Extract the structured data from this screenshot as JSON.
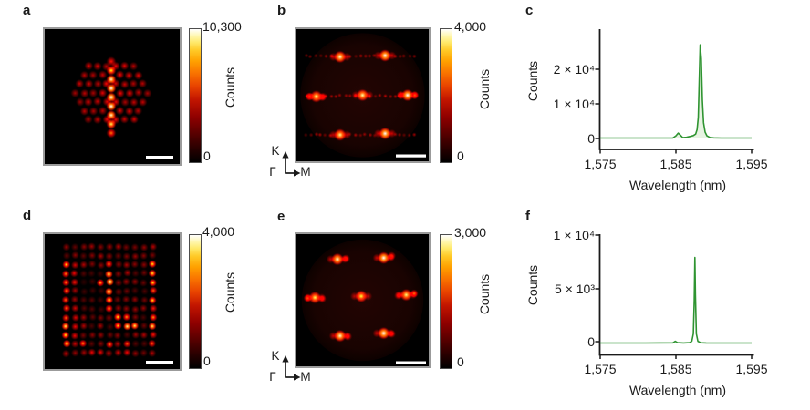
{
  "figure": {
    "background": "#ffffff"
  },
  "colors": {
    "line_green": "#2f9431",
    "fill_green": "#e7f3e2",
    "scalebar": "#ffffff",
    "axis": "#1a1a1a",
    "hot_colormap": [
      "#000000",
      "#560000",
      "#c21500",
      "#f97300",
      "#ffc926",
      "#ffffff"
    ]
  },
  "panels": {
    "a": {
      "label": "a",
      "colorbar": {
        "max": "10,300",
        "min": "0",
        "title": "Counts"
      },
      "scalebar": true
    },
    "b": {
      "label": "b",
      "colorbar": {
        "max": "4,000",
        "min": "0",
        "title": "Counts"
      },
      "scalebar": true,
      "axes_indicator": {
        "up": "K",
        "origin": "Γ",
        "right": "M"
      }
    },
    "c": {
      "label": "c",
      "ylabel": "Counts",
      "xlabel": "Wavelength (nm)",
      "yticks": [
        "2 × 10⁴",
        "1 × 10⁴",
        "0"
      ],
      "xticks": [
        "1,575",
        "1,585",
        "1,595"
      ]
    },
    "d": {
      "label": "d",
      "colorbar": {
        "max": "4,000",
        "min": "0",
        "title": "Counts"
      },
      "scalebar": true
    },
    "e": {
      "label": "e",
      "colorbar": {
        "max": "3,000",
        "min": "0",
        "title": "Counts"
      },
      "scalebar": true,
      "axes_indicator": {
        "up": "K",
        "origin": "Γ",
        "right": "M"
      }
    },
    "f": {
      "label": "f",
      "ylabel": "Counts",
      "xlabel": "Wavelength (nm)",
      "yticks": [
        "1 × 10⁴",
        "5 × 10³",
        "0"
      ],
      "xticks": [
        "1,575",
        "1,585",
        "1,595"
      ]
    }
  },
  "chart_data": [
    {
      "panel": "c",
      "type": "line",
      "xlabel": "Wavelength (nm)",
      "ylabel": "Counts",
      "xlim": [
        1575,
        1595
      ],
      "ylim": [
        0,
        31500
      ],
      "legend": false,
      "grid": false,
      "peak_wavelength_nm": 1588.2,
      "peak_counts": 27000,
      "points": [
        [
          1575,
          80
        ],
        [
          1578,
          80
        ],
        [
          1581,
          85
        ],
        [
          1583.5,
          90
        ],
        [
          1584.6,
          100
        ],
        [
          1585.0,
          700
        ],
        [
          1585.3,
          1500
        ],
        [
          1585.6,
          900
        ],
        [
          1585.9,
          200
        ],
        [
          1586.4,
          300
        ],
        [
          1586.9,
          550
        ],
        [
          1587.3,
          800
        ],
        [
          1587.6,
          1200
        ],
        [
          1587.8,
          2500
        ],
        [
          1587.95,
          6000
        ],
        [
          1588.05,
          14000
        ],
        [
          1588.2,
          27000
        ],
        [
          1588.35,
          23000
        ],
        [
          1588.5,
          11000
        ],
        [
          1588.65,
          4500
        ],
        [
          1588.85,
          1800
        ],
        [
          1589.1,
          700
        ],
        [
          1589.5,
          250
        ],
        [
          1590,
          120
        ],
        [
          1591,
          90
        ],
        [
          1593,
          80
        ],
        [
          1595,
          80
        ]
      ],
      "fill_under": true
    },
    {
      "panel": "f",
      "type": "line",
      "xlabel": "Wavelength (nm)",
      "ylabel": "Counts",
      "xlim": [
        1575,
        1595
      ],
      "ylim": [
        0,
        10200
      ],
      "legend": false,
      "grid": false,
      "peak_wavelength_nm": 1587.5,
      "peak_counts": 8000,
      "points": [
        [
          1575,
          40
        ],
        [
          1578,
          45
        ],
        [
          1581,
          40
        ],
        [
          1584.6,
          60
        ],
        [
          1584.9,
          200
        ],
        [
          1585.2,
          80
        ],
        [
          1586,
          50
        ],
        [
          1586.8,
          80
        ],
        [
          1587.1,
          200
        ],
        [
          1587.3,
          900
        ],
        [
          1587.42,
          4000
        ],
        [
          1587.5,
          8000
        ],
        [
          1587.58,
          4500
        ],
        [
          1587.7,
          900
        ],
        [
          1587.9,
          200
        ],
        [
          1588.3,
          70
        ],
        [
          1589,
          50
        ],
        [
          1591,
          45
        ],
        [
          1595,
          40
        ]
      ],
      "fill_under": false
    },
    {
      "panel": "a",
      "type": "heatmap",
      "colormap": "hot",
      "vmin": 0,
      "vmax": 10300,
      "pattern": "hexagonal_lattice_with_bright_central_column",
      "seed": 7,
      "column": {
        "x": 0.493,
        "y_start": 0.24,
        "y_step": 0.0663,
        "intensities": [
          0.4,
          0.78,
          0.95,
          1,
          1,
          1,
          0.95,
          0.85,
          0.55
        ]
      },
      "lattice": {
        "cx": 0.493,
        "cy": 0.473,
        "col_spacing": 0.0667,
        "row_spacing": 0.0663,
        "half_width": 0.31,
        "half_height": 0.245,
        "edge_taper": 0.5,
        "intensity_min": 0.17,
        "intensity_max": 0.42
      }
    },
    {
      "panel": "b",
      "type": "heatmap",
      "colormap": "hot",
      "vmin": 0,
      "vmax": 4000,
      "pattern": "fourier_space_hexagon_spots",
      "seed": 3,
      "pupil": {
        "cx": 0.5,
        "cy": 0.5,
        "r": 0.47
      },
      "spots": [
        [
          0.33,
          0.21,
          0.95
        ],
        [
          0.67,
          0.2,
          1.0
        ],
        [
          0.15,
          0.51,
          0.88
        ],
        [
          0.5,
          0.5,
          0.92
        ],
        [
          0.84,
          0.5,
          1.0
        ],
        [
          0.33,
          0.8,
          0.9
        ],
        [
          0.67,
          0.79,
          1.0
        ]
      ],
      "companions": [
        [
          0.1,
          0.51,
          0.45
        ],
        [
          0.195,
          0.515,
          0.4
        ],
        [
          0.895,
          0.5,
          0.5
        ],
        [
          0.79,
          0.5,
          0.35
        ]
      ],
      "streak_rows": [
        0.205,
        0.505,
        0.8
      ]
    },
    {
      "panel": "d",
      "type": "heatmap",
      "colormap": "hot",
      "vmin": 0,
      "vmax": 4000,
      "pattern": "square_lattice_frame",
      "seed": 11,
      "grid": {
        "x0": 0.16,
        "y0": 0.095,
        "dx": 0.064,
        "dy": 0.0655,
        "cols": 11,
        "rows": 13,
        "base_min": 0.1,
        "base_max": 0.28
      },
      "bright_cells": [
        [
          5,
          2,
          0.55
        ],
        [
          5,
          3,
          0.85
        ],
        [
          5,
          4,
          1.0
        ],
        [
          5,
          5,
          0.9
        ],
        [
          4,
          4,
          0.65
        ],
        [
          5,
          6,
          0.75
        ],
        [
          5,
          7,
          0.6
        ],
        [
          6,
          8,
          0.75
        ],
        [
          7,
          9,
          0.9
        ],
        [
          8,
          9,
          0.85
        ],
        [
          6,
          9,
          0.7
        ],
        [
          7,
          8,
          0.6
        ],
        [
          0,
          9,
          0.85
        ],
        [
          0,
          10,
          0.75
        ],
        [
          10,
          3,
          0.8
        ],
        [
          10,
          9,
          0.85
        ],
        [
          2,
          11,
          0.6
        ],
        [
          5,
          11,
          0.55
        ],
        [
          7,
          11,
          0.5
        ]
      ]
    },
    {
      "panel": "e",
      "type": "heatmap",
      "colormap": "hot",
      "vmin": 0,
      "vmax": 3000,
      "pattern": "fourier_space_hexagon_spots",
      "seed": 5,
      "pupil": {
        "cx": 0.5,
        "cy": 0.5,
        "r": 0.46
      },
      "spots": [
        [
          0.31,
          0.19,
          0.95
        ],
        [
          0.66,
          0.18,
          1.0
        ],
        [
          0.14,
          0.48,
          0.85
        ],
        [
          0.49,
          0.47,
          0.82
        ],
        [
          0.83,
          0.46,
          0.88
        ],
        [
          0.33,
          0.77,
          0.95
        ],
        [
          0.66,
          0.75,
          1.0
        ]
      ],
      "companions": [
        [
          0.375,
          0.185,
          0.4
        ],
        [
          0.72,
          0.165,
          0.42
        ],
        [
          0.085,
          0.485,
          0.5
        ],
        [
          0.195,
          0.49,
          0.35
        ],
        [
          0.89,
          0.45,
          0.55
        ],
        [
          0.77,
          0.465,
          0.3
        ],
        [
          0.39,
          0.775,
          0.3
        ],
        [
          0.72,
          0.755,
          0.35
        ]
      ],
      "streak_rows": []
    }
  ]
}
